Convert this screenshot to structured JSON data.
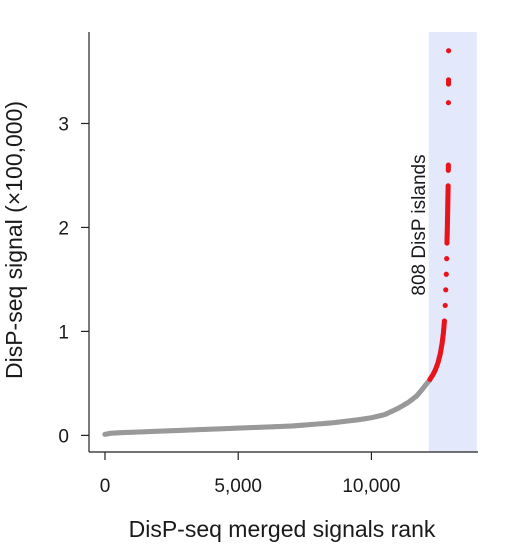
{
  "chart_data": {
    "type": "scatter",
    "title": "",
    "xlabel": "DisP-seq merged signals rank",
    "ylabel": "DisP-seq signal (×100,000)",
    "xlim": [
      -600,
      14000
    ],
    "ylim": [
      -0.16,
      3.88
    ],
    "x_ticks": [
      {
        "value": 0,
        "label": "0"
      },
      {
        "value": 5000,
        "label": "5,000"
      },
      {
        "value": 10000,
        "label": "10,000"
      }
    ],
    "y_ticks": [
      {
        "value": 0,
        "label": "0"
      },
      {
        "value": 1,
        "label": "1"
      },
      {
        "value": 2,
        "label": "2"
      },
      {
        "value": 3,
        "label": "3"
      }
    ],
    "highlight_region": {
      "x_start": 12150,
      "x_end": 13950,
      "color": "#e4e8fb"
    },
    "annotation": {
      "text": "808 DisP islands"
    },
    "series": [
      {
        "color": "#999999",
        "points": [
          [
            0,
            0.01
          ],
          [
            200,
            0.02
          ],
          [
            500,
            0.025
          ],
          [
            1000,
            0.03
          ],
          [
            1500,
            0.035
          ],
          [
            2000,
            0.04
          ],
          [
            2500,
            0.045
          ],
          [
            3000,
            0.05
          ],
          [
            3500,
            0.055
          ],
          [
            4000,
            0.06
          ],
          [
            4500,
            0.065
          ],
          [
            5000,
            0.07
          ],
          [
            5500,
            0.075
          ],
          [
            6000,
            0.08
          ],
          [
            6500,
            0.085
          ],
          [
            7000,
            0.09
          ],
          [
            7500,
            0.1
          ],
          [
            8000,
            0.11
          ],
          [
            8500,
            0.12
          ],
          [
            9000,
            0.135
          ],
          [
            9500,
            0.15
          ],
          [
            10000,
            0.17
          ],
          [
            10500,
            0.2
          ],
          [
            11000,
            0.26
          ],
          [
            11400,
            0.32
          ],
          [
            11700,
            0.38
          ],
          [
            11900,
            0.44
          ],
          [
            12050,
            0.49
          ],
          [
            12180,
            0.53
          ]
        ]
      },
      {
        "color": "#e8141c",
        "points": [
          [
            12200,
            0.54
          ],
          [
            12300,
            0.58
          ],
          [
            12400,
            0.63
          ],
          [
            12500,
            0.7
          ],
          [
            12580,
            0.78
          ],
          [
            12650,
            0.88
          ],
          [
            12700,
            0.98
          ],
          [
            12740,
            1.1
          ],
          [
            12770,
            1.25
          ],
          [
            12790,
            1.4
          ],
          [
            12810,
            1.55
          ],
          [
            12825,
            1.7
          ],
          [
            12835,
            1.85
          ],
          [
            12845,
            1.95
          ],
          [
            12853,
            2.05
          ],
          [
            12860,
            2.12
          ],
          [
            12865,
            2.2
          ],
          [
            12870,
            2.28
          ],
          [
            12875,
            2.33
          ],
          [
            12880,
            2.4
          ],
          [
            12885,
            2.55
          ],
          [
            12888,
            2.6
          ],
          [
            12890,
            3.2
          ],
          [
            12893,
            3.38
          ],
          [
            12895,
            3.42
          ],
          [
            12897,
            3.7
          ]
        ]
      }
    ]
  }
}
